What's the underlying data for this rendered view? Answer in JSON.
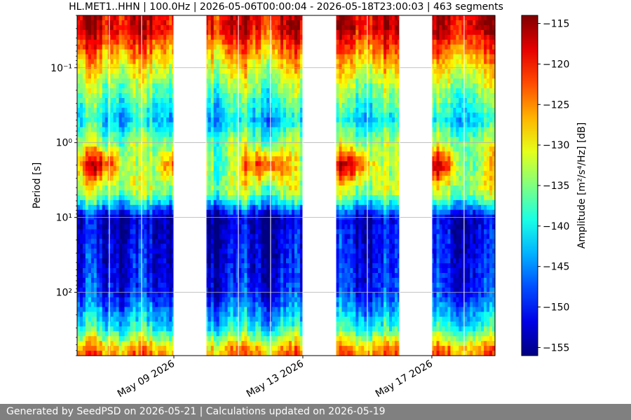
{
  "chart_data": {
    "type": "heatmap",
    "title": "HL.MET1..HHN | 100.0Hz | 2026-05-06T00:00:04 - 2026-05-18T23:00:03 | 463 segments",
    "ylabel": "Period [s]",
    "xlabel": "",
    "y_scale": "log",
    "y_inverted": true,
    "ylim": [
      0.02,
      700
    ],
    "xlim": [
      "2026-05-06T00:00:04",
      "2026-05-18T23:00:03"
    ],
    "y_ticks": [
      {
        "value": 0.1,
        "label": "10⁻¹"
      },
      {
        "value": 1,
        "label": "10⁰"
      },
      {
        "value": 10,
        "label": "10¹"
      },
      {
        "value": 100,
        "label": "10²"
      }
    ],
    "x_ticks": [
      {
        "value": "2026-05-09",
        "label": "May 09 2026"
      },
      {
        "value": "2026-05-13",
        "label": "May 13 2026"
      },
      {
        "value": "2026-05-17",
        "label": "May 17 2026"
      }
    ],
    "data_gaps": [
      {
        "start": "2026-05-09T00:00",
        "end": "2026-05-10T00:00"
      },
      {
        "start": "2026-05-13T00:00",
        "end": "2026-05-14T00:00"
      },
      {
        "start": "2026-05-16T00:00",
        "end": "2026-05-17T00:00"
      }
    ],
    "amplitude_by_period": [
      {
        "period_s": 0.03,
        "amplitude_db": -118
      },
      {
        "period_s": 0.1,
        "amplitude_db": -130
      },
      {
        "period_s": 0.5,
        "amplitude_db": -142
      },
      {
        "period_s": 2,
        "amplitude_db": -127
      },
      {
        "period_s": 5,
        "amplitude_db": -135
      },
      {
        "period_s": 10,
        "amplitude_db": -153
      },
      {
        "period_s": 100,
        "amplitude_db": -150
      },
      {
        "period_s": 300,
        "amplitude_db": -140
      },
      {
        "period_s": 600,
        "amplitude_db": -125
      }
    ],
    "grid": true,
    "colorbar": {
      "label": "Amplitude [m²/s⁴/Hz] [dB]",
      "colormap": "jet",
      "range": [
        -156,
        -114
      ],
      "ticks": [
        -115,
        -120,
        -125,
        -130,
        -135,
        -140,
        -145,
        -150,
        -155
      ]
    }
  },
  "footer": {
    "text": "Generated by SeedPSD on 2026-05-21 | Calculations updated on 2026-05-19"
  }
}
